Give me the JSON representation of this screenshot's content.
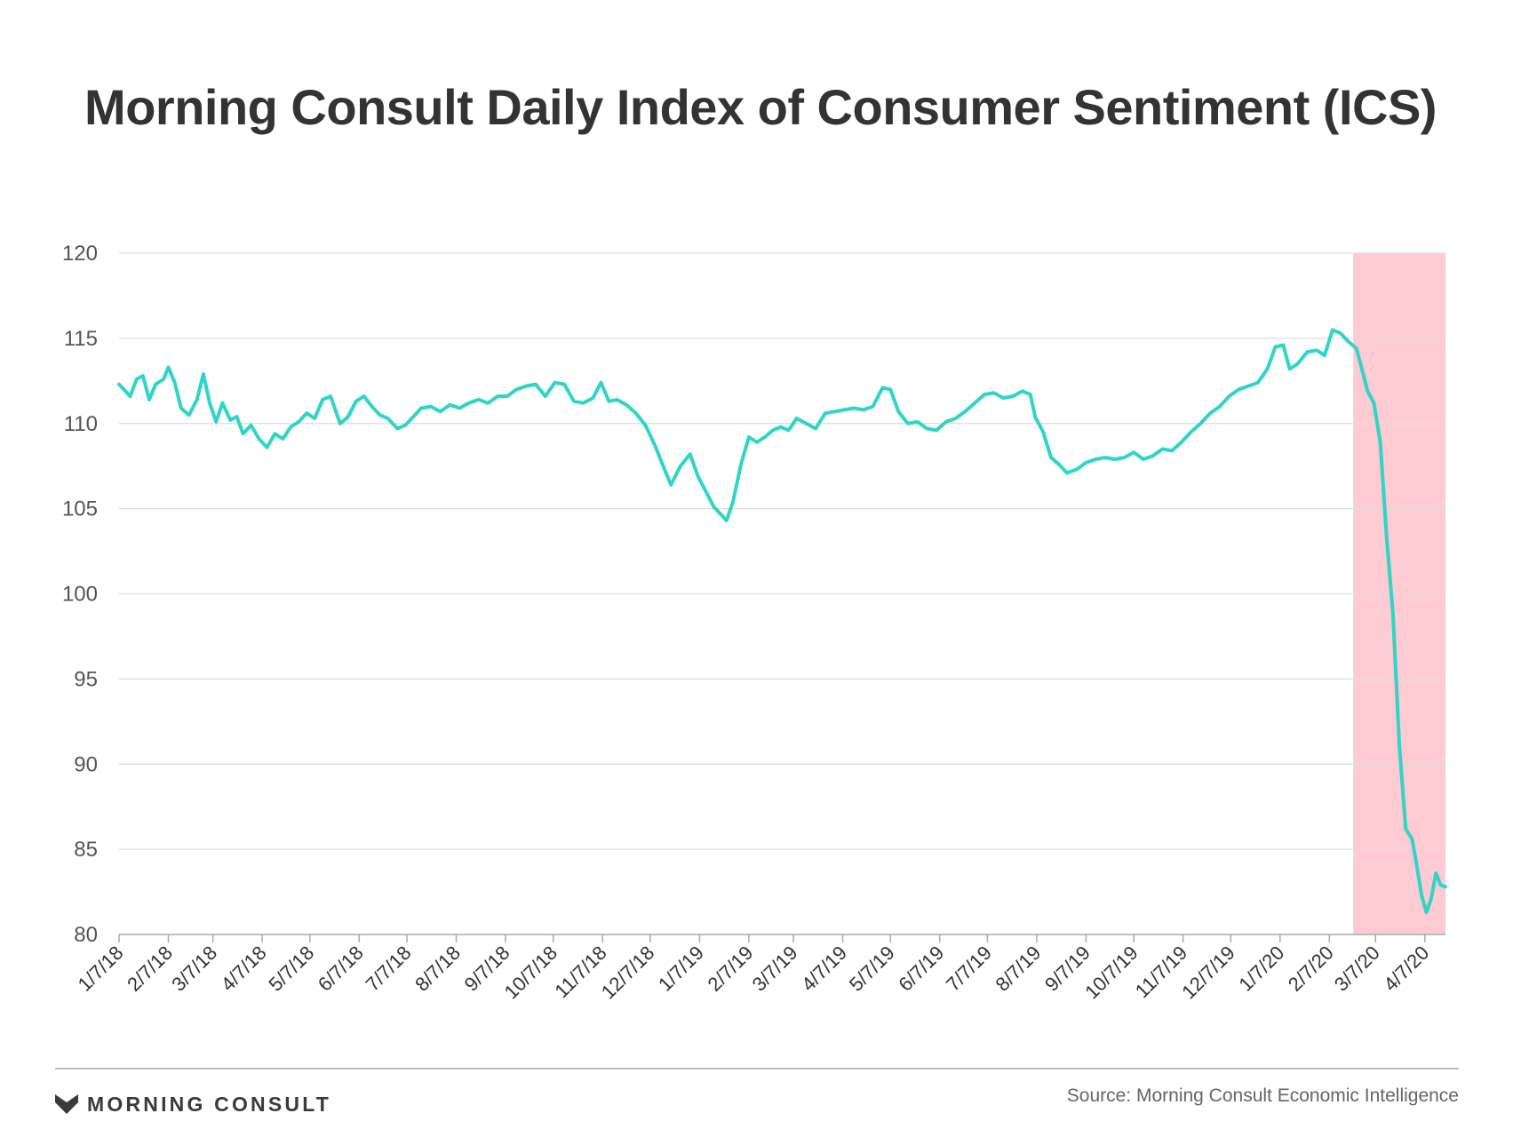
{
  "brand": {
    "name": "MORNING CONSULT",
    "logo_icon": "morning-consult-m-icon"
  },
  "footer": {
    "source": "Source: Morning Consult Economic Intelligence"
  },
  "colors": {
    "line": "#2fd5c7",
    "highlight": "#fdcbd1",
    "grid": "#dddddd",
    "axis": "#aaaaaa",
    "text": "#333333"
  },
  "chart_data": {
    "type": "line",
    "title": "Morning Consult Daily Index of Consumer Sentiment (ICS)",
    "xlabel": "",
    "ylabel": "",
    "ylim": [
      80,
      120
    ],
    "yticks": [
      80,
      85,
      90,
      95,
      100,
      105,
      110,
      115,
      120
    ],
    "x_tick_labels": [
      "1/7/18",
      "2/7/18",
      "3/7/18",
      "4/7/18",
      "5/7/18",
      "6/7/18",
      "7/7/18",
      "8/7/18",
      "9/7/18",
      "10/7/18",
      "11/7/18",
      "12/7/18",
      "1/7/19",
      "2/7/19",
      "3/7/19",
      "4/7/19",
      "5/7/19",
      "6/7/19",
      "7/7/19",
      "8/7/19",
      "9/7/19",
      "10/7/19",
      "11/7/19",
      "12/7/19",
      "1/7/20",
      "2/7/20",
      "3/7/20",
      "4/7/20"
    ],
    "x_range": [
      "1/7/18",
      "4/20/20"
    ],
    "grid": true,
    "highlight_region": [
      "2/22/20",
      "4/20/20"
    ],
    "series": [
      {
        "values": [
          [
            "1/7/18",
            112.3
          ],
          [
            "1/10/18",
            112.0
          ],
          [
            "1/14/18",
            111.6
          ],
          [
            "1/18/18",
            112.6
          ],
          [
            "1/22/18",
            112.8
          ],
          [
            "1/26/18",
            111.4
          ],
          [
            "1/30/18",
            112.3
          ],
          [
            "2/4/18",
            112.6
          ],
          [
            "2/7/18",
            113.3
          ],
          [
            "2/11/18",
            112.4
          ],
          [
            "2/15/18",
            110.9
          ],
          [
            "2/20/18",
            110.5
          ],
          [
            "2/25/18",
            111.4
          ],
          [
            "3/1/18",
            112.9
          ],
          [
            "3/5/18",
            111.2
          ],
          [
            "3/9/18",
            110.1
          ],
          [
            "3/13/18",
            111.2
          ],
          [
            "3/18/18",
            110.2
          ],
          [
            "3/22/18",
            110.4
          ],
          [
            "3/26/18",
            109.4
          ],
          [
            "3/31/18",
            109.9
          ],
          [
            "4/5/18",
            109.1
          ],
          [
            "4/10/18",
            108.6
          ],
          [
            "4/15/18",
            109.4
          ],
          [
            "4/20/18",
            109.1
          ],
          [
            "4/25/18",
            109.8
          ],
          [
            "4/30/18",
            110.1
          ],
          [
            "5/5/18",
            110.6
          ],
          [
            "5/10/18",
            110.3
          ],
          [
            "5/15/18",
            111.4
          ],
          [
            "5/20/18",
            111.6
          ],
          [
            "5/26/18",
            110.0
          ],
          [
            "5/31/18",
            110.4
          ],
          [
            "6/5/18",
            111.3
          ],
          [
            "6/10/18",
            111.6
          ],
          [
            "6/15/18",
            111.0
          ],
          [
            "6/20/18",
            110.5
          ],
          [
            "6/25/18",
            110.3
          ],
          [
            "7/1/18",
            109.7
          ],
          [
            "7/6/18",
            109.9
          ],
          [
            "7/11/18",
            110.4
          ],
          [
            "7/16/18",
            110.9
          ],
          [
            "7/22/18",
            111.0
          ],
          [
            "7/28/18",
            110.7
          ],
          [
            "8/3/18",
            111.1
          ],
          [
            "8/9/18",
            110.9
          ],
          [
            "8/15/18",
            111.2
          ],
          [
            "8/21/18",
            111.4
          ],
          [
            "8/27/18",
            111.2
          ],
          [
            "9/2/18",
            111.6
          ],
          [
            "9/8/18",
            111.6
          ],
          [
            "9/14/18",
            112.0
          ],
          [
            "9/20/18",
            112.2
          ],
          [
            "9/26/18",
            112.3
          ],
          [
            "10/2/18",
            111.6
          ],
          [
            "10/8/18",
            112.4
          ],
          [
            "10/14/18",
            112.3
          ],
          [
            "10/20/18",
            111.3
          ],
          [
            "10/26/18",
            111.2
          ],
          [
            "11/1/18",
            111.5
          ],
          [
            "11/6/18",
            112.4
          ],
          [
            "11/11/18",
            111.3
          ],
          [
            "11/16/18",
            111.4
          ],
          [
            "11/22/18",
            111.1
          ],
          [
            "11/28/18",
            110.6
          ],
          [
            "12/4/18",
            109.9
          ],
          [
            "12/10/18",
            108.7
          ],
          [
            "12/16/18",
            107.3
          ],
          [
            "12/20/18",
            106.4
          ],
          [
            "12/26/18",
            107.5
          ],
          [
            "1/1/19",
            108.2
          ],
          [
            "1/6/19",
            106.9
          ],
          [
            "1/11/19",
            106.0
          ],
          [
            "1/16/19",
            105.1
          ],
          [
            "1/21/19",
            104.6
          ],
          [
            "1/24/19",
            104.3
          ],
          [
            "1/28/19",
            105.4
          ],
          [
            "2/2/19",
            107.6
          ],
          [
            "2/7/19",
            109.2
          ],
          [
            "2/12/19",
            108.9
          ],
          [
            "2/17/19",
            109.2
          ],
          [
            "2/22/19",
            109.6
          ],
          [
            "2/27/19",
            109.8
          ],
          [
            "3/4/19",
            109.6
          ],
          [
            "3/9/19",
            110.3
          ],
          [
            "3/15/19",
            110.0
          ],
          [
            "3/21/19",
            109.7
          ],
          [
            "3/27/19",
            110.6
          ],
          [
            "4/2/19",
            110.7
          ],
          [
            "4/8/19",
            110.8
          ],
          [
            "4/14/19",
            110.9
          ],
          [
            "4/20/19",
            110.8
          ],
          [
            "4/26/19",
            111.0
          ],
          [
            "5/2/19",
            112.1
          ],
          [
            "5/7/19",
            112.0
          ],
          [
            "5/12/19",
            110.7
          ],
          [
            "5/18/19",
            110.0
          ],
          [
            "5/24/19",
            110.1
          ],
          [
            "5/30/19",
            109.7
          ],
          [
            "6/5/19",
            109.6
          ],
          [
            "6/11/19",
            110.1
          ],
          [
            "6/17/19",
            110.3
          ],
          [
            "6/23/19",
            110.7
          ],
          [
            "6/29/19",
            111.2
          ],
          [
            "7/5/19",
            111.7
          ],
          [
            "7/11/19",
            111.8
          ],
          [
            "7/17/19",
            111.5
          ],
          [
            "7/23/19",
            111.6
          ],
          [
            "7/29/19",
            111.9
          ],
          [
            "8/3/19",
            111.7
          ],
          [
            "8/6/19",
            110.4
          ],
          [
            "8/11/19",
            109.5
          ],
          [
            "8/16/19",
            108.0
          ],
          [
            "8/21/19",
            107.6
          ],
          [
            "8/26/19",
            107.1
          ],
          [
            "9/1/19",
            107.3
          ],
          [
            "9/7/19",
            107.7
          ],
          [
            "9/13/19",
            107.9
          ],
          [
            "9/19/19",
            108.0
          ],
          [
            "9/25/19",
            107.9
          ],
          [
            "10/1/19",
            108.0
          ],
          [
            "10/7/19",
            108.3
          ],
          [
            "10/13/19",
            107.9
          ],
          [
            "10/19/19",
            108.1
          ],
          [
            "10/25/19",
            108.5
          ],
          [
            "10/31/19",
            108.4
          ],
          [
            "11/6/19",
            108.9
          ],
          [
            "11/12/19",
            109.5
          ],
          [
            "11/18/19",
            110.0
          ],
          [
            "11/24/19",
            110.6
          ],
          [
            "11/30/19",
            111.0
          ],
          [
            "12/6/19",
            111.6
          ],
          [
            "12/12/19",
            112.0
          ],
          [
            "12/18/19",
            112.2
          ],
          [
            "12/24/19",
            112.4
          ],
          [
            "12/30/19",
            113.2
          ],
          [
            "1/4/20",
            114.5
          ],
          [
            "1/9/20",
            114.6
          ],
          [
            "1/13/20",
            113.2
          ],
          [
            "1/18/20",
            113.5
          ],
          [
            "1/24/20",
            114.2
          ],
          [
            "1/30/20",
            114.3
          ],
          [
            "2/4/20",
            114.0
          ],
          [
            "2/9/20",
            115.5
          ],
          [
            "2/14/20",
            115.3
          ],
          [
            "2/19/20",
            114.8
          ],
          [
            "2/24/20",
            114.4
          ],
          [
            "2/28/20",
            113.0
          ],
          [
            "3/2/20",
            111.9
          ],
          [
            "3/6/20",
            111.2
          ],
          [
            "3/10/20",
            108.9
          ],
          [
            "3/14/20",
            103.3
          ],
          [
            "3/18/20",
            98.8
          ],
          [
            "3/22/20",
            91.1
          ],
          [
            "3/26/20",
            86.2
          ],
          [
            "3/30/20",
            85.6
          ],
          [
            "4/2/20",
            84.0
          ],
          [
            "4/5/20",
            82.3
          ],
          [
            "4/8/20",
            81.3
          ],
          [
            "4/11/20",
            82.1
          ],
          [
            "4/14/20",
            83.6
          ],
          [
            "4/17/20",
            82.9
          ],
          [
            "4/20/20",
            82.8
          ]
        ]
      }
    ]
  }
}
